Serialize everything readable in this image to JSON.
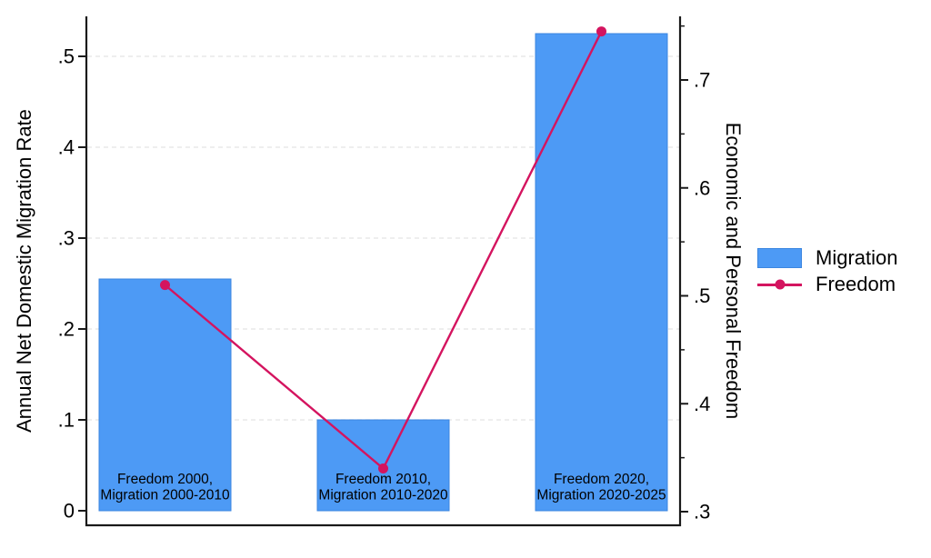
{
  "chart_data": {
    "type": "bar+line",
    "categories": [
      [
        "Freedom 2000,",
        "Migration 2000-2010"
      ],
      [
        "Freedom 2010,",
        "Migration 2010-2020"
      ],
      [
        "Freedom 2020,",
        "Migration 2020-2025"
      ]
    ],
    "series": [
      {
        "name": "Migration",
        "type": "bar",
        "axis": "left",
        "values": [
          0.255,
          0.1,
          0.525
        ],
        "color": "#4D9AF5",
        "border_color": "#3B86E0"
      },
      {
        "name": "Freedom",
        "type": "line",
        "axis": "right",
        "values": [
          0.51,
          0.34,
          0.745
        ],
        "color": "#D4145F"
      }
    ],
    "left_axis": {
      "title": "Annual Net Domestic Migration Rate",
      "ticks": [
        0,
        0.1,
        0.2,
        0.3,
        0.4,
        0.5
      ],
      "tick_labels": [
        "0",
        ".1",
        ".2",
        ".3",
        ".4",
        ".5"
      ],
      "range": [
        0,
        0.5
      ]
    },
    "right_axis": {
      "title": "Economic and Personal Freedom",
      "ticks": [
        0.3,
        0.4,
        0.5,
        0.6,
        0.7
      ],
      "tick_labels": [
        ".3",
        ".4",
        ".5",
        ".6",
        ".7"
      ],
      "minor_ticks": [
        0.35,
        0.45,
        0.55,
        0.65,
        0.75
      ],
      "range": [
        0.3,
        0.75
      ]
    },
    "grid": {
      "at_left_ticks": [
        0.1,
        0.2,
        0.3,
        0.4,
        0.5
      ],
      "style": "dashed",
      "legend_position": "right-middle"
    },
    "legend": {
      "items": [
        {
          "label": "Migration",
          "marker": "swatch"
        },
        {
          "label": "Freedom",
          "marker": "line-dot"
        }
      ]
    },
    "colors": {
      "grid": "#E9E9E9",
      "axis": "#1A1A1A",
      "text": "#000000",
      "background": "#FFFFFF"
    }
  }
}
